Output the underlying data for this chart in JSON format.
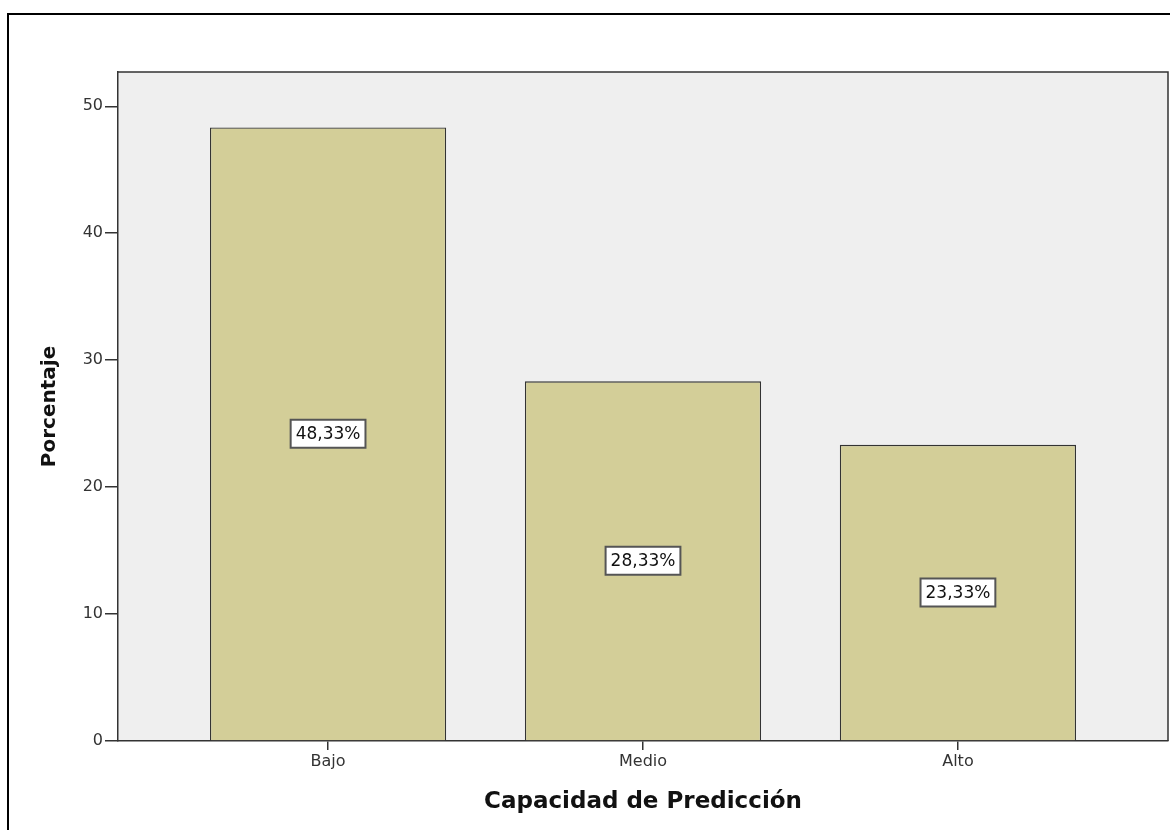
{
  "chart_data": {
    "type": "bar",
    "xlabel": "Capacidad de Predicción",
    "ylabel": "Porcentaje",
    "categories": [
      "Bajo",
      "Medio",
      "Alto"
    ],
    "values": [
      48.33,
      28.33,
      23.33
    ],
    "value_labels": [
      "48,33%",
      "28,33%",
      "23,33%"
    ],
    "color": "#d3ce98",
    "ylim": [
      0,
      52.7
    ],
    "yticks": [
      0,
      10,
      20,
      30,
      40,
      50
    ]
  }
}
